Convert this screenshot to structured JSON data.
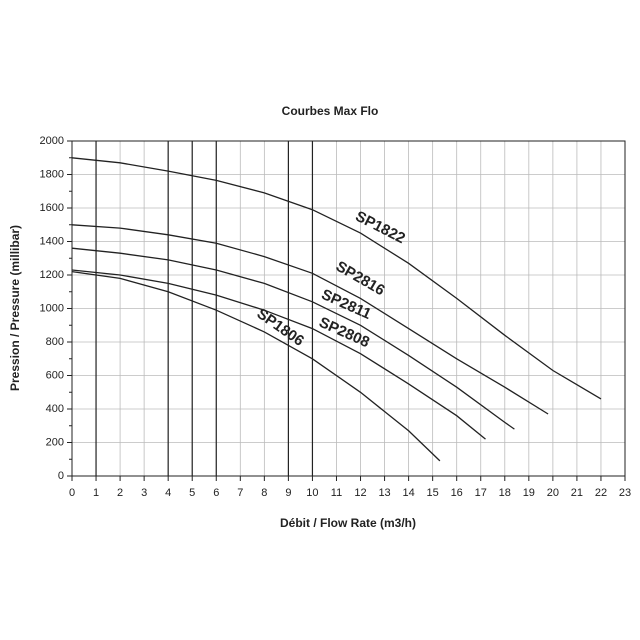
{
  "chart_data": {
    "type": "line",
    "title": "Courbes Max Flo",
    "x_label": "Débit / Flow Rate (m3/h)",
    "y_label": "Pression / Pressure (millibar)",
    "xlim": [
      0,
      23
    ],
    "xticks": [
      0,
      1,
      2,
      3,
      4,
      5,
      6,
      7,
      8,
      9,
      10,
      11,
      12,
      13,
      14,
      15,
      16,
      17,
      18,
      19,
      20,
      21,
      22,
      23
    ],
    "ylim": [
      0,
      2000
    ],
    "yticks": [
      0,
      200,
      400,
      600,
      800,
      1000,
      1200,
      1400,
      1600,
      1800,
      2000
    ],
    "grid": true,
    "emphasized_xgrid": [
      1,
      4,
      5,
      6,
      9,
      10
    ],
    "series": [
      {
        "name": "SP1822",
        "color": "#222222",
        "x": [
          0,
          2,
          4,
          6,
          8,
          10,
          12,
          14,
          16,
          18,
          20,
          22
        ],
        "values": [
          1900,
          1870,
          1820,
          1765,
          1690,
          1590,
          1450,
          1270,
          1060,
          840,
          630,
          460
        ]
      },
      {
        "name": "SP2816",
        "color": "#222222",
        "x": [
          0,
          2,
          4,
          6,
          8,
          10,
          12,
          14,
          16,
          18,
          19.8
        ],
        "values": [
          1500,
          1480,
          1440,
          1390,
          1310,
          1210,
          1060,
          880,
          700,
          530,
          370
        ]
      },
      {
        "name": "SP2811",
        "color": "#222222",
        "x": [
          0,
          2,
          4,
          6,
          8,
          10,
          12,
          14,
          16,
          18,
          18.4
        ],
        "values": [
          1360,
          1330,
          1290,
          1230,
          1150,
          1040,
          900,
          720,
          530,
          320,
          280
        ]
      },
      {
        "name": "SP2808",
        "color": "#222222",
        "x": [
          0,
          2,
          4,
          6,
          8,
          10,
          12,
          14,
          16,
          17.2
        ],
        "values": [
          1230,
          1200,
          1150,
          1080,
          990,
          880,
          730,
          550,
          360,
          220
        ]
      },
      {
        "name": "SP1806",
        "color": "#222222",
        "x": [
          0,
          2,
          4,
          6,
          8,
          10,
          12,
          14,
          15.3
        ],
        "values": [
          1220,
          1180,
          1100,
          990,
          860,
          700,
          500,
          270,
          90
        ]
      }
    ]
  }
}
